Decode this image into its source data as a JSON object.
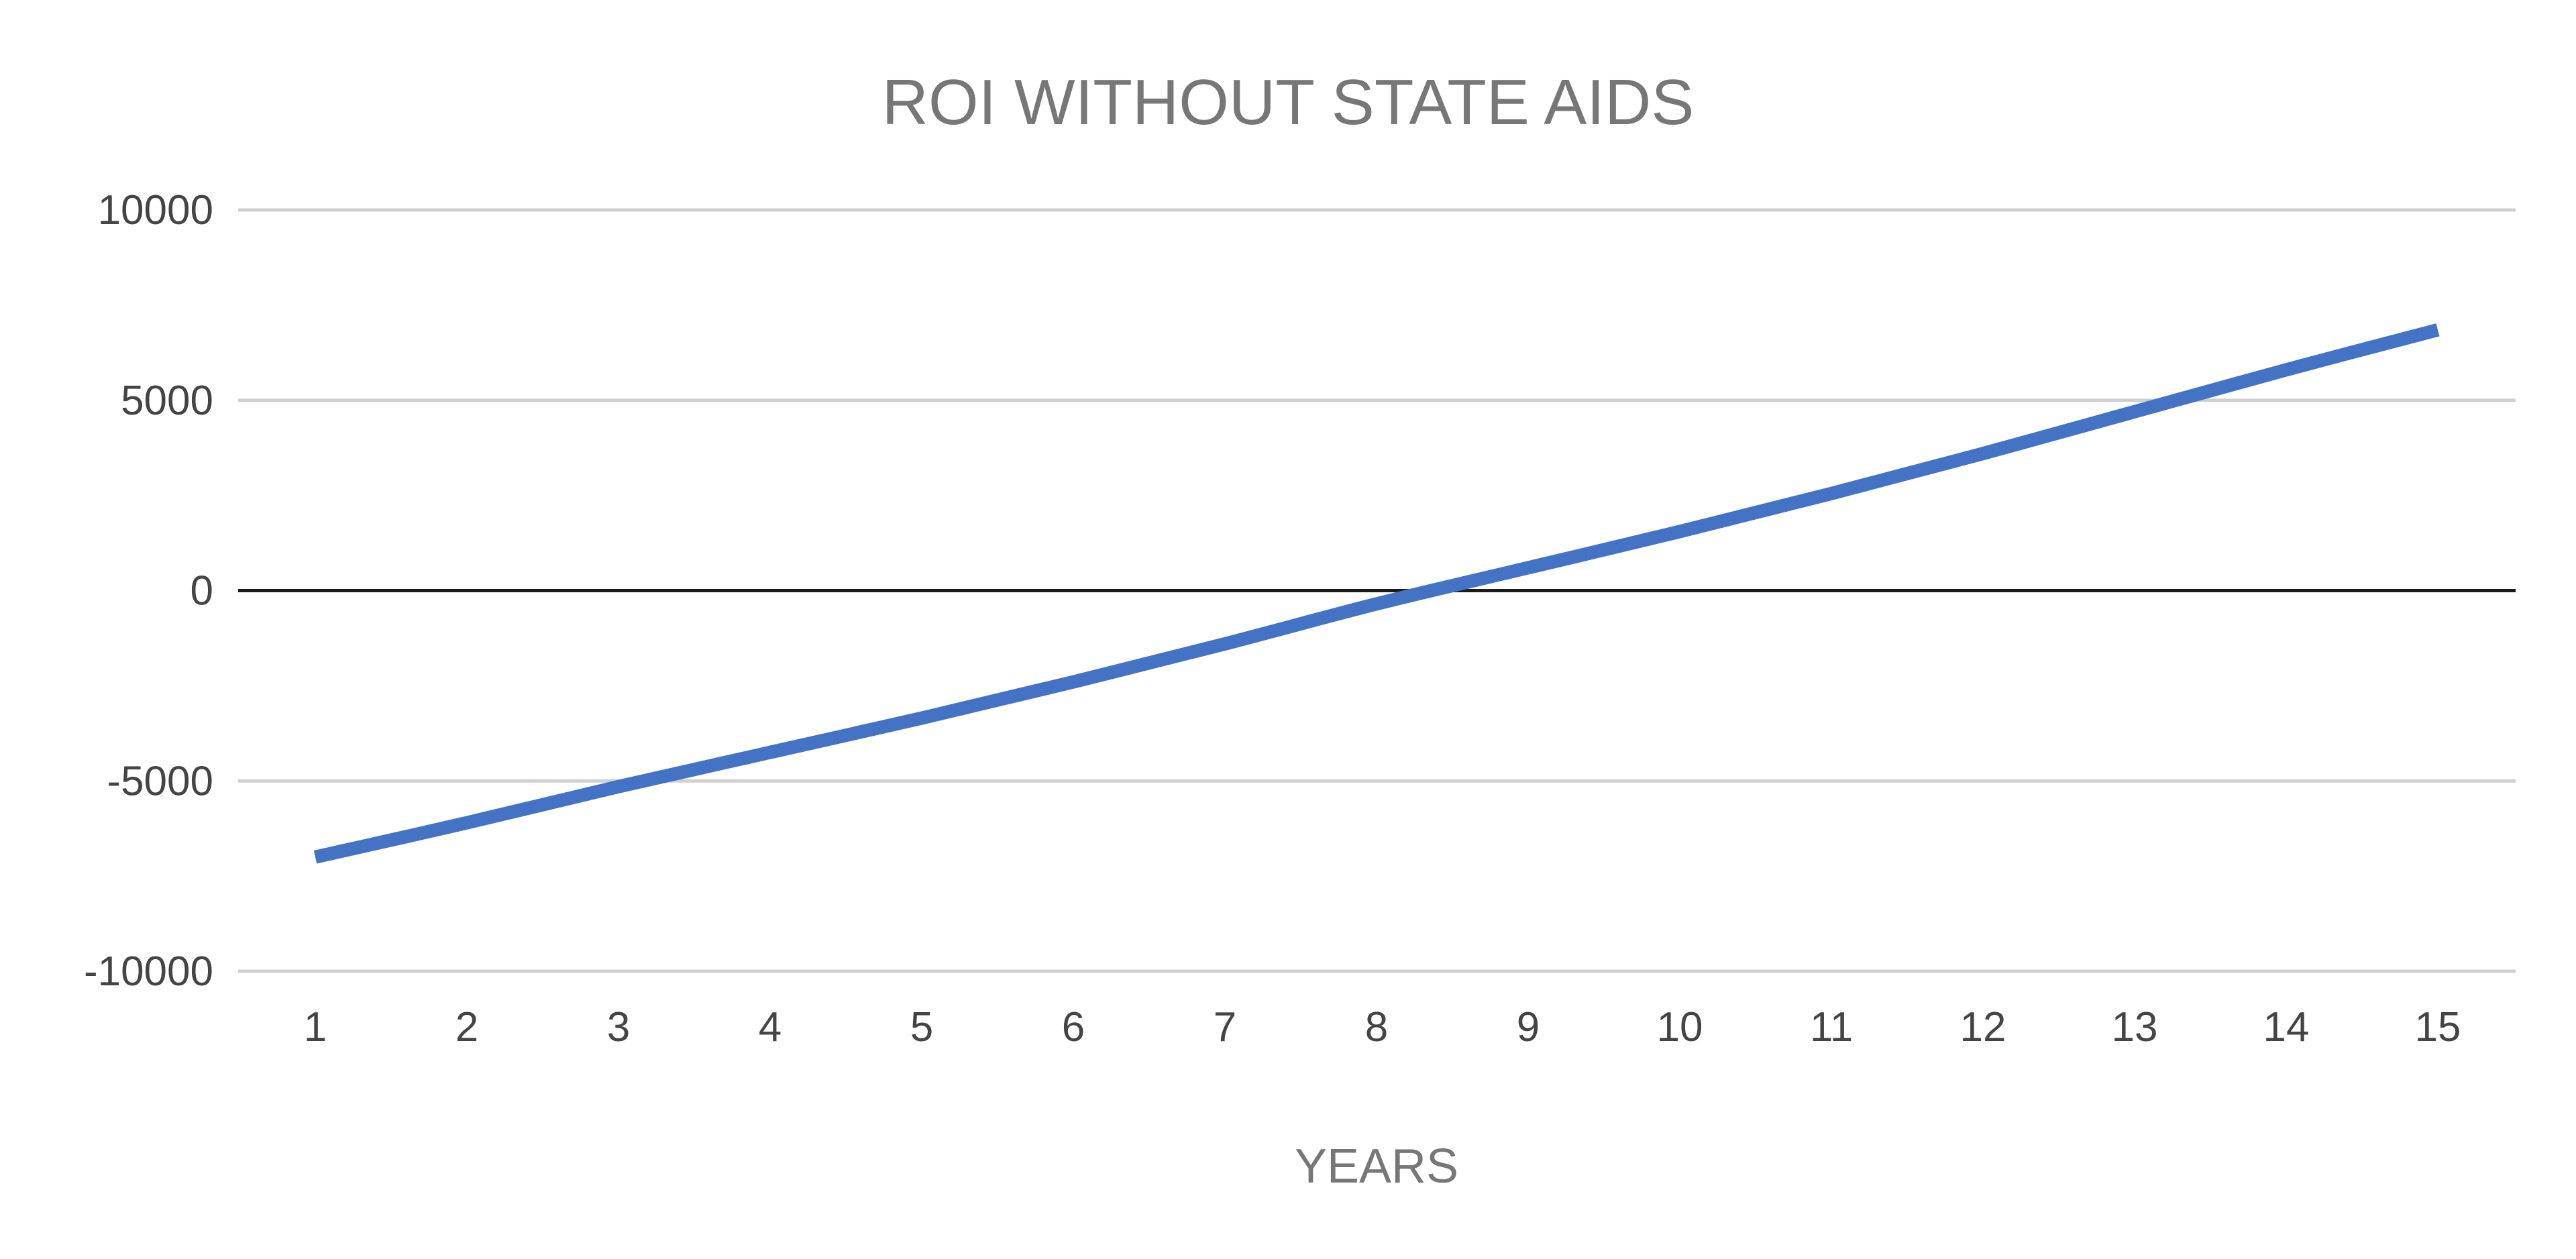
{
  "chart_data": {
    "type": "line",
    "title": "ROI WITHOUT STATE AIDS",
    "xlabel": "YEARS",
    "ylabel": "",
    "x": [
      1,
      2,
      3,
      4,
      5,
      6,
      7,
      8,
      9,
      10,
      11,
      12,
      13,
      14,
      15
    ],
    "y_ticks": [
      10000,
      5000,
      0,
      -5000,
      -10000
    ],
    "ylim": [
      -10000,
      10000
    ],
    "grid": true,
    "legend": "none",
    "series": [
      {
        "color": "#4472c4",
        "values": [
          -7000,
          -6100,
          -5150,
          -4250,
          -3350,
          -2400,
          -1400,
          -350,
          600,
          1550,
          2550,
          3600,
          4700,
          5800,
          6850
        ]
      }
    ]
  }
}
